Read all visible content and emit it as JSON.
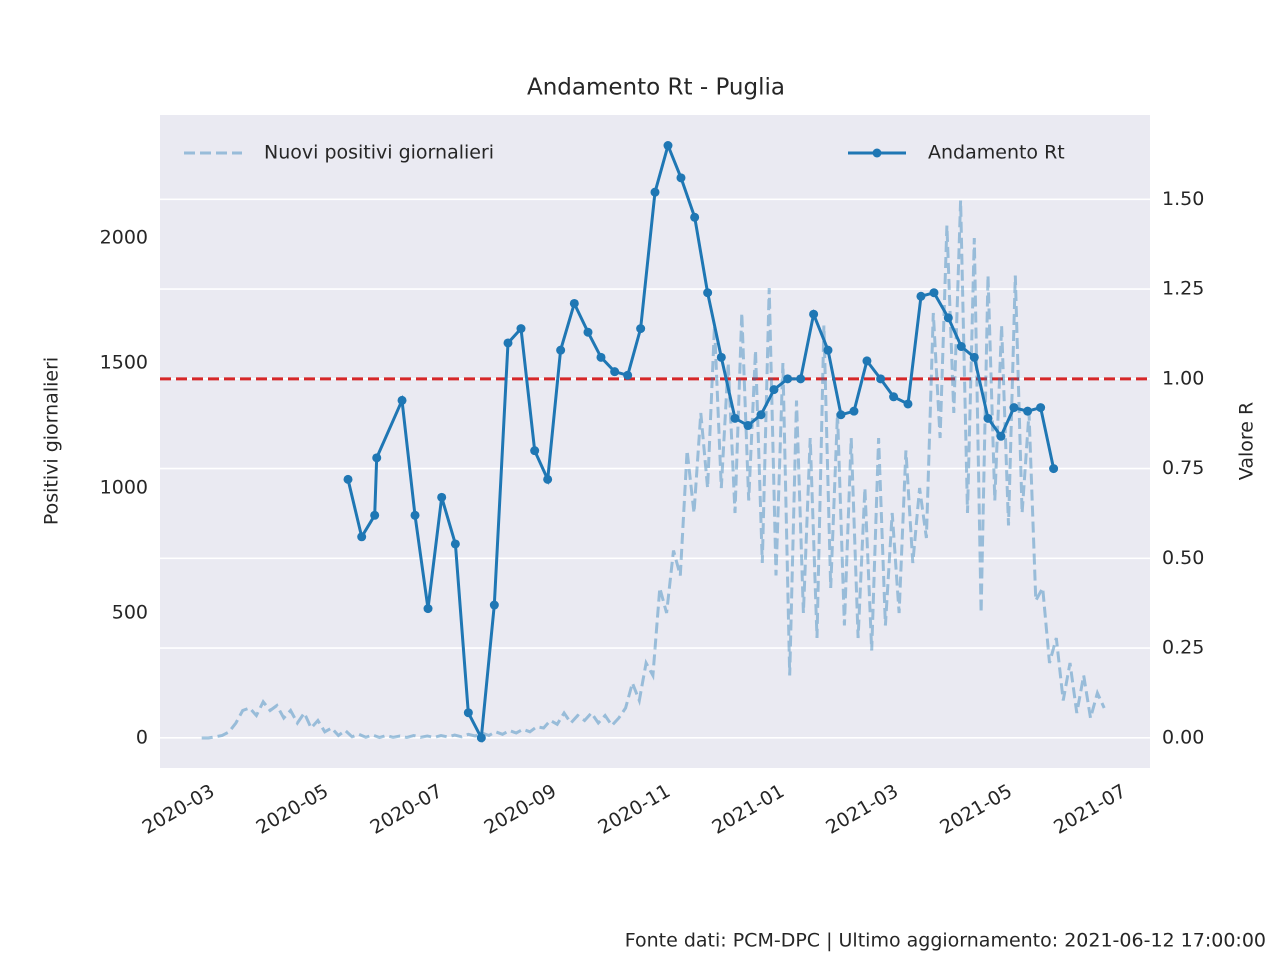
{
  "chart_data": {
    "type": "line",
    "title": "Andamento Rt - Puglia",
    "ylabel": "Positivi giornalieri",
    "y2label": "Valore R",
    "footer": "Fonte dati: PCM-DPC | Ultimo aggiornamento: 2021-06-12 17:00:00",
    "xlim": [
      2020.089,
      2021.537
    ],
    "xticks": [
      {
        "value": 2020.1667,
        "label": "2020-03"
      },
      {
        "value": 2020.3333,
        "label": "2020-05"
      },
      {
        "value": 2020.5,
        "label": "2020-07"
      },
      {
        "value": 2020.6667,
        "label": "2020-09"
      },
      {
        "value": 2020.8333,
        "label": "2020-11"
      },
      {
        "value": 2021.0,
        "label": "2021-01"
      },
      {
        "value": 2021.1667,
        "label": "2021-03"
      },
      {
        "value": 2021.3333,
        "label": "2021-05"
      },
      {
        "value": 2021.5,
        "label": "2021-07"
      }
    ],
    "ylim": [
      -120,
      2492
    ],
    "yticks": [
      0,
      500,
      1000,
      1500,
      2000
    ],
    "y2lim": [
      -0.084,
      1.735
    ],
    "y2ticks": [
      {
        "value": 0,
        "label": "0.00"
      },
      {
        "value": 0.25,
        "label": "0.25"
      },
      {
        "value": 0.5,
        "label": "0.50"
      },
      {
        "value": 0.75,
        "label": "0.75"
      },
      {
        "value": 1,
        "label": "1.00"
      },
      {
        "value": 1.25,
        "label": "1.25"
      },
      {
        "value": 1.5,
        "label": "1.50"
      }
    ],
    "grid": "y2",
    "hline": {
      "value": 1,
      "axis": "y2",
      "color": "#d62728"
    },
    "series": [
      {
        "name": "Nuovi positivi giornalieri",
        "color": "#1f77b4",
        "style": "dashed",
        "legend_loc": "upper left",
        "x": [
          2020.15,
          2020.16,
          2020.17,
          2020.18,
          2020.19,
          2020.2,
          2020.21,
          2020.22,
          2020.23,
          2020.24,
          2020.25,
          2020.26,
          2020.27,
          2020.28,
          2020.29,
          2020.3,
          2020.31,
          2020.32,
          2020.33,
          2020.34,
          2020.35,
          2020.36,
          2020.37,
          2020.38,
          2020.39,
          2020.4,
          2020.41,
          2020.42,
          2020.43,
          2020.44,
          2020.45,
          2020.46,
          2020.47,
          2020.48,
          2020.49,
          2020.5,
          2020.51,
          2020.52,
          2020.53,
          2020.54,
          2020.55,
          2020.56,
          2020.57,
          2020.58,
          2020.59,
          2020.6,
          2020.61,
          2020.62,
          2020.63,
          2020.64,
          2020.65,
          2020.66,
          2020.67,
          2020.68,
          2020.69,
          2020.7,
          2020.71,
          2020.72,
          2020.73,
          2020.74,
          2020.75,
          2020.76,
          2020.77,
          2020.78,
          2020.79,
          2020.8,
          2020.81,
          2020.82,
          2020.83,
          2020.84,
          2020.85,
          2020.86,
          2020.87,
          2020.88,
          2020.89,
          2020.9,
          2020.91,
          2020.92,
          2020.93,
          2020.94,
          2020.95,
          2020.96,
          2020.97,
          2020.98,
          2020.99,
          2021.0,
          2021.01,
          2021.02,
          2021.03,
          2021.04,
          2021.05,
          2021.06,
          2021.07,
          2021.08,
          2021.09,
          2021.1,
          2021.11,
          2021.12,
          2021.13,
          2021.14,
          2021.15,
          2021.16,
          2021.17,
          2021.18,
          2021.19,
          2021.2,
          2021.21,
          2021.22,
          2021.23,
          2021.24,
          2021.25,
          2021.26,
          2021.27,
          2021.28,
          2021.29,
          2021.3,
          2021.31,
          2021.32,
          2021.33,
          2021.34,
          2021.35,
          2021.36,
          2021.37,
          2021.38,
          2021.39,
          2021.4,
          2021.41,
          2021.42,
          2021.43,
          2021.44,
          2021.45,
          2021.46,
          2021.47
        ],
        "values": [
          0,
          0,
          5,
          10,
          25,
          60,
          110,
          120,
          90,
          145,
          110,
          130,
          80,
          110,
          60,
          100,
          40,
          70,
          25,
          40,
          10,
          30,
          5,
          15,
          3,
          12,
          2,
          10,
          3,
          8,
          2,
          10,
          3,
          8,
          2,
          10,
          4,
          12,
          5,
          15,
          8,
          20,
          10,
          25,
          15,
          30,
          20,
          35,
          25,
          45,
          40,
          70,
          55,
          100,
          60,
          90,
          70,
          100,
          60,
          90,
          50,
          80,
          120,
          220,
          150,
          300,
          250,
          600,
          500,
          750,
          650,
          1150,
          900,
          1300,
          1000,
          1650,
          1000,
          1500,
          900,
          1700,
          950,
          1550,
          700,
          1800,
          650,
          1500,
          250,
          1350,
          500,
          1200,
          400,
          1650,
          600,
          1300,
          450,
          1200,
          400,
          1000,
          350,
          1200,
          450,
          900,
          500,
          1150,
          700,
          1000,
          800,
          1700,
          1200,
          2050,
          1300,
          2150,
          900,
          2000,
          500,
          1850,
          950,
          1650,
          850,
          1850,
          900,
          1300,
          550,
          600,
          300,
          400,
          150,
          300,
          100,
          250,
          80,
          180,
          120
        ]
      },
      {
        "name": "Andamento Rt",
        "color": "#1f77b4",
        "style": "solid",
        "markers": true,
        "axis": "y2",
        "legend_loc": "upper right",
        "x": [
          2020.364,
          2020.384,
          2020.403,
          2020.406,
          2020.443,
          2020.462,
          2020.481,
          2020.501,
          2020.521,
          2020.54,
          2020.559,
          2020.578,
          2020.598,
          2020.617,
          2020.637,
          2020.656,
          2020.675,
          2020.695,
          2020.715,
          2020.734,
          2020.754,
          2020.773,
          2020.792,
          2020.813,
          2020.832,
          2020.851,
          2020.871,
          2020.89,
          2020.91,
          2020.93,
          2020.949,
          2020.968,
          2020.987,
          2021.007,
          2021.026,
          2021.045,
          2021.066,
          2021.085,
          2021.104,
          2021.123,
          2021.143,
          2021.162,
          2021.183,
          2021.202,
          2021.221,
          2021.242,
          2021.261,
          2021.28,
          2021.3,
          2021.319,
          2021.338,
          2021.358,
          2021.377,
          2021.396
        ],
        "values": [
          0.72,
          0.56,
          0.62,
          0.78,
          0.94,
          0.62,
          0.36,
          0.67,
          0.54,
          0.07,
          0.0,
          0.37,
          1.1,
          1.14,
          0.8,
          0.72,
          1.08,
          1.21,
          1.13,
          1.06,
          1.02,
          1.01,
          1.14,
          1.52,
          1.65,
          1.56,
          1.45,
          1.24,
          1.06,
          0.89,
          0.87,
          0.9,
          0.97,
          1.0,
          1.0,
          1.18,
          1.08,
          0.9,
          0.91,
          1.05,
          1.0,
          0.95,
          0.93,
          1.23,
          1.24,
          1.17,
          1.09,
          1.06,
          0.89,
          0.84,
          0.92,
          0.91,
          0.92,
          0.75
        ]
      }
    ]
  }
}
